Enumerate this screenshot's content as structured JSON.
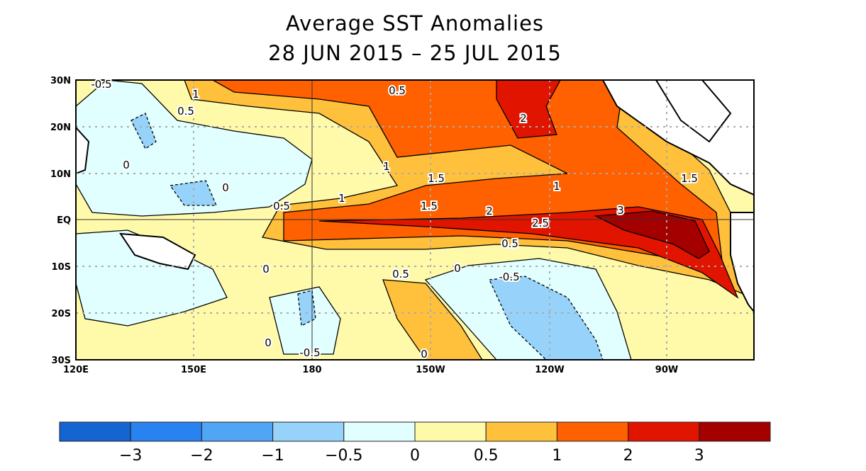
{
  "title": "Average SST Anomalies",
  "subtitle": "28 JUN 2015 – 25 JUL 2015",
  "lat_labels": [
    "30N",
    "20N",
    "10N",
    "EQ",
    "10S",
    "20S",
    "30S"
  ],
  "lon_labels": [
    "120E",
    "150E",
    "180",
    "150W",
    "120W",
    "90W"
  ],
  "contour_labels": [
    "-0.5",
    "1",
    "0.5",
    "0",
    "0",
    "0.5",
    "1",
    "1.5",
    "1",
    "2",
    "1",
    "1.5",
    "1.5",
    "2",
    "2.5",
    "3",
    "0.5",
    "0",
    "0",
    "0.5",
    "-0.5",
    "0",
    "-0.5",
    "0",
    "0.5"
  ],
  "colorbar": {
    "colors": [
      "#1464d2",
      "#2882f0",
      "#50a5f5",
      "#96d2fa",
      "#e1ffff",
      "#fffaaa",
      "#ffc03c",
      "#ff6000",
      "#e11400",
      "#a50000"
    ],
    "tick_labels": [
      "−3",
      "−2",
      "−1",
      "−0.5",
      "0",
      "0.5",
      "1",
      "2",
      "3"
    ]
  }
}
